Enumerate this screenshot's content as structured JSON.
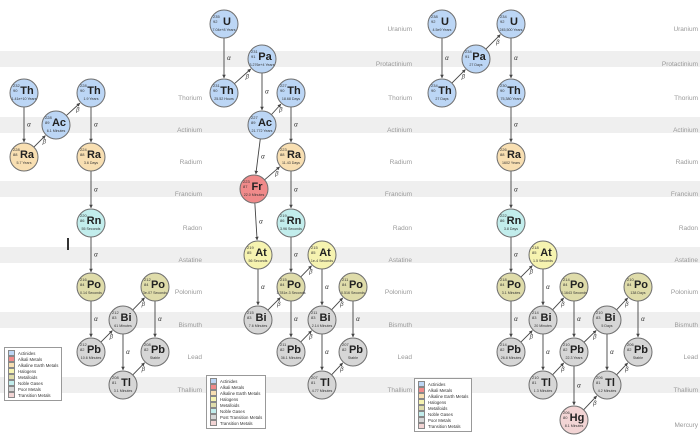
{
  "colors": {
    "actinide": "#bcd6f5",
    "alkali": "#f08a8a",
    "alkaline_earth": "#f8dfb2",
    "halogen": "#f6f3b0",
    "metalloid": "#dfdcaa",
    "noble_gas": "#c2edec",
    "post_transition": "#d6d6d6",
    "transition": "#f2d4d4",
    "border": "#6f6f6f",
    "line": "#444444"
  },
  "row_labels": [
    "Uranium",
    "Protactinium",
    "Thorium",
    "Actinium",
    "Radium",
    "Francium",
    "Radon",
    "Astatine",
    "Polonium",
    "Bismuth",
    "Lead",
    "Thallium",
    "Mercury"
  ],
  "legend_items": [
    {
      "label": "Actinides",
      "color": "#bcd6f5"
    },
    {
      "label": "Alkali Metals",
      "color": "#f08a8a"
    },
    {
      "label": "Alkaline Earth Metals",
      "color": "#f8dfb2"
    },
    {
      "label": "Halogens",
      "color": "#f6f3b0"
    },
    {
      "label": "Metalloids",
      "color": "#dfdcaa"
    },
    {
      "label": "Noble Gases",
      "color": "#c2edec"
    },
    {
      "label": "Poor Metals",
      "color": "#d6d6d6"
    },
    {
      "label": "Transition Metals",
      "color": "#f2d4d4"
    }
  ],
  "legend_items_2": [
    {
      "label": "Actinides",
      "color": "#bcd6f5"
    },
    {
      "label": "Alkali Metals",
      "color": "#f08a8a"
    },
    {
      "label": "Alkaline Earth Metals",
      "color": "#f8dfb2"
    },
    {
      "label": "Halogens",
      "color": "#f6f3b0"
    },
    {
      "label": "Metalloids",
      "color": "#dfdcaa"
    },
    {
      "label": "Noble Gases",
      "color": "#c2edec"
    },
    {
      "label": "Post Transition Metals",
      "color": "#d6d6d6"
    },
    {
      "label": "Transition Metals",
      "color": "#f2d4d4"
    }
  ],
  "chains": [
    {
      "nodes": [
        {
          "id": "th232",
          "sym": "Th",
          "mass": "232",
          "z": "90",
          "half": "1.41e+10 Years",
          "cat": "actinide"
        },
        {
          "id": "th228",
          "sym": "Th",
          "mass": "228",
          "z": "90",
          "half": "1.9 Years",
          "cat": "actinide"
        },
        {
          "id": "ac228",
          "sym": "Ac",
          "mass": "228",
          "z": "89",
          "half": "6.1 Minutes",
          "cat": "actinide"
        },
        {
          "id": "ra228",
          "sym": "Ra",
          "mass": "228",
          "z": "88",
          "half": "5.7 Years",
          "cat": "alkaline_earth"
        },
        {
          "id": "ra224",
          "sym": "Ra",
          "mass": "224",
          "z": "88",
          "half": "3.6 Days",
          "cat": "alkaline_earth"
        },
        {
          "id": "rn220",
          "sym": "Rn",
          "mass": "220",
          "z": "86",
          "half": "55 Seconds",
          "cat": "noble_gas"
        },
        {
          "id": "po216",
          "sym": "Po",
          "mass": "216",
          "z": "84",
          "half": "0.14 Seconds",
          "cat": "metalloid"
        },
        {
          "id": "po212",
          "sym": "Po",
          "mass": "212",
          "z": "84",
          "half": "3e-07 Seconds",
          "cat": "metalloid"
        },
        {
          "id": "bi212",
          "sym": "Bi",
          "mass": "212",
          "z": "83",
          "half": "61 Minutes",
          "cat": "post_transition"
        },
        {
          "id": "pb212",
          "sym": "Pb",
          "mass": "212",
          "z": "82",
          "half": "10.6 Minutes",
          "cat": "post_transition"
        },
        {
          "id": "pb208",
          "sym": "Pb",
          "mass": "208",
          "z": "82",
          "half": "Stable",
          "cat": "post_transition"
        },
        {
          "id": "tl208",
          "sym": "Tl",
          "mass": "208",
          "z": "81",
          "half": "3.1 Minutes",
          "cat": "post_transition"
        }
      ],
      "edges": [
        {
          "from": "th232",
          "to": "ra228",
          "mode": "α"
        },
        {
          "from": "ra228",
          "to": "ac228",
          "mode": "β"
        },
        {
          "from": "ac228",
          "to": "th228",
          "mode": "β"
        },
        {
          "from": "th228",
          "to": "ra224",
          "mode": "α"
        },
        {
          "from": "ra224",
          "to": "rn220",
          "mode": "α"
        },
        {
          "from": "rn220",
          "to": "po216",
          "mode": "α"
        },
        {
          "from": "po216",
          "to": "pb212",
          "mode": "α"
        },
        {
          "from": "pb212",
          "to": "bi212",
          "mode": "β"
        },
        {
          "from": "bi212",
          "to": "po212",
          "mode": "β"
        },
        {
          "from": "bi212",
          "to": "tl208",
          "mode": "α"
        },
        {
          "from": "po212",
          "to": "pb208",
          "mode": "α"
        },
        {
          "from": "tl208",
          "to": "pb208",
          "mode": "β"
        }
      ]
    },
    {
      "nodes": [
        {
          "id": "u235",
          "sym": "U",
          "mass": "235",
          "z": "92",
          "half": "7.04e+8 Years",
          "cat": "actinide"
        },
        {
          "id": "pa231",
          "sym": "Pa",
          "mass": "231",
          "z": "91",
          "half": "3.276e+4 Years",
          "cat": "actinide"
        },
        {
          "id": "th231",
          "sym": "Th",
          "mass": "231",
          "z": "90",
          "half": "25.52 Hours",
          "cat": "actinide"
        },
        {
          "id": "th227",
          "sym": "Th",
          "mass": "227",
          "z": "90",
          "half": "18.68 Days",
          "cat": "actinide"
        },
        {
          "id": "ac227",
          "sym": "Ac",
          "mass": "227",
          "z": "89",
          "half": "21.772 Years",
          "cat": "actinide"
        },
        {
          "id": "ra223",
          "sym": "Ra",
          "mass": "223",
          "z": "88",
          "half": "11.43 Days",
          "cat": "alkaline_earth"
        },
        {
          "id": "fr223",
          "sym": "Fr",
          "mass": "223",
          "z": "87",
          "half": "22.0 Minutes",
          "cat": "alkali"
        },
        {
          "id": "rn219",
          "sym": "Rn",
          "mass": "219",
          "z": "86",
          "half": "3.96 Seconds",
          "cat": "noble_gas"
        },
        {
          "id": "at219",
          "sym": "At",
          "mass": "219",
          "z": "85",
          "half": "56 Seconds",
          "cat": "halogen"
        },
        {
          "id": "at215",
          "sym": "At",
          "mass": "215",
          "z": "85",
          "half": "1e-4 Seconds",
          "cat": "halogen"
        },
        {
          "id": "po215",
          "sym": "Po",
          "mass": "215",
          "z": "84",
          "half": "1.781e-3 Seconds",
          "cat": "metalloid"
        },
        {
          "id": "po211",
          "sym": "Po",
          "mass": "211",
          "z": "84",
          "half": "0.516 Seconds",
          "cat": "metalloid"
        },
        {
          "id": "bi215",
          "sym": "Bi",
          "mass": "215",
          "z": "83",
          "half": "7.6 Minutes",
          "cat": "post_transition"
        },
        {
          "id": "bi211",
          "sym": "Bi",
          "mass": "211",
          "z": "83",
          "half": "2.14 Minutes",
          "cat": "post_transition"
        },
        {
          "id": "pb211",
          "sym": "Pb",
          "mass": "211",
          "z": "82",
          "half": "36.1 Minutes",
          "cat": "post_transition"
        },
        {
          "id": "pb207",
          "sym": "Pb",
          "mass": "207",
          "z": "82",
          "half": "Stable",
          "cat": "post_transition"
        },
        {
          "id": "tl207",
          "sym": "Tl",
          "mass": "207",
          "z": "81",
          "half": "4.77 Minutes",
          "cat": "post_transition"
        }
      ],
      "edges": [
        {
          "from": "u235",
          "to": "th231",
          "mode": "α"
        },
        {
          "from": "th231",
          "to": "pa231",
          "mode": "β"
        },
        {
          "from": "pa231",
          "to": "ac227",
          "mode": "α"
        },
        {
          "from": "ac227",
          "to": "th227",
          "mode": "β"
        },
        {
          "from": "ac227",
          "to": "fr223",
          "mode": "α"
        },
        {
          "from": "th227",
          "to": "ra223",
          "mode": "α"
        },
        {
          "from": "fr223",
          "to": "ra223",
          "mode": "β"
        },
        {
          "from": "fr223",
          "to": "at219",
          "mode": "α"
        },
        {
          "from": "ra223",
          "to": "rn219",
          "mode": "α"
        },
        {
          "from": "rn219",
          "to": "po215",
          "mode": "α"
        },
        {
          "from": "at219",
          "to": "bi215",
          "mode": "α"
        },
        {
          "from": "bi215",
          "to": "po215",
          "mode": "β"
        },
        {
          "from": "po215",
          "to": "at215",
          "mode": "β"
        },
        {
          "from": "po215",
          "to": "pb211",
          "mode": "α"
        },
        {
          "from": "at215",
          "to": "bi211",
          "mode": "α"
        },
        {
          "from": "pb211",
          "to": "bi211",
          "mode": "β"
        },
        {
          "from": "bi211",
          "to": "po211",
          "mode": "β"
        },
        {
          "from": "bi211",
          "to": "tl207",
          "mode": "α"
        },
        {
          "from": "po211",
          "to": "pb207",
          "mode": "α"
        },
        {
          "from": "tl207",
          "to": "pb207",
          "mode": "β"
        }
      ]
    },
    {
      "nodes": [
        {
          "id": "u238",
          "sym": "U",
          "mass": "238",
          "z": "92",
          "half": "4.5e9 Years",
          "cat": "actinide"
        },
        {
          "id": "pa234",
          "sym": "Pa",
          "mass": "234",
          "z": "91",
          "half": "27 Days",
          "cat": "actinide"
        },
        {
          "id": "u234",
          "sym": "U",
          "mass": "234",
          "z": "92",
          "half": "245,500 Years",
          "cat": "actinide"
        },
        {
          "id": "th234",
          "sym": "Th",
          "mass": "234",
          "z": "90",
          "half": "27 Days",
          "cat": "actinide"
        },
        {
          "id": "th230",
          "sym": "Th",
          "mass": "230",
          "z": "90",
          "half": "75,380 Years",
          "cat": "actinide"
        },
        {
          "id": "ra226",
          "sym": "Ra",
          "mass": "226",
          "z": "88",
          "half": "1602 Years",
          "cat": "alkaline_earth"
        },
        {
          "id": "rn222",
          "sym": "Rn",
          "mass": "222",
          "z": "86",
          "half": "3.8 Days",
          "cat": "noble_gas"
        },
        {
          "id": "at218",
          "sym": "At",
          "mass": "218",
          "z": "85",
          "half": "1.5 Seconds",
          "cat": "halogen"
        },
        {
          "id": "po218",
          "sym": "Po",
          "mass": "218",
          "z": "84",
          "half": "3.1 Minutes",
          "cat": "metalloid"
        },
        {
          "id": "po214",
          "sym": "Po",
          "mass": "214",
          "z": "84",
          "half": "0.1643 Seconds",
          "cat": "metalloid"
        },
        {
          "id": "po210",
          "sym": "Po",
          "mass": "210",
          "z": "84",
          "half": "138 Days",
          "cat": "metalloid"
        },
        {
          "id": "bi214",
          "sym": "Bi",
          "mass": "214",
          "z": "83",
          "half": "20 Minutes",
          "cat": "post_transition"
        },
        {
          "id": "bi210",
          "sym": "Bi",
          "mass": "210",
          "z": "83",
          "half": "5 Days",
          "cat": "post_transition"
        },
        {
          "id": "pb214",
          "sym": "Pb",
          "mass": "214",
          "z": "82",
          "half": "26.8 Minutes",
          "cat": "post_transition"
        },
        {
          "id": "pb210",
          "sym": "Pb",
          "mass": "210",
          "z": "82",
          "half": "22.3 Years",
          "cat": "post_transition"
        },
        {
          "id": "pb206",
          "sym": "Pb",
          "mass": "206",
          "z": "82",
          "half": "Stable",
          "cat": "post_transition"
        },
        {
          "id": "tl210",
          "sym": "Tl",
          "mass": "210",
          "z": "81",
          "half": "1.3 Minutes",
          "cat": "post_transition"
        },
        {
          "id": "tl206",
          "sym": "Tl",
          "mass": "206",
          "z": "81",
          "half": "4.2 Minutes",
          "cat": "post_transition"
        },
        {
          "id": "hg206",
          "sym": "Hg",
          "mass": "206",
          "z": "80",
          "half": "8.1 Minutes",
          "cat": "transition"
        }
      ],
      "edges": [
        {
          "from": "u238",
          "to": "th234",
          "mode": "α"
        },
        {
          "from": "th234",
          "to": "pa234",
          "mode": "β"
        },
        {
          "from": "pa234",
          "to": "u234",
          "mode": "β"
        },
        {
          "from": "u234",
          "to": "th230",
          "mode": "α"
        },
        {
          "from": "th230",
          "to": "ra226",
          "mode": "α"
        },
        {
          "from": "ra226",
          "to": "rn222",
          "mode": "α"
        },
        {
          "from": "rn222",
          "to": "po218",
          "mode": "α"
        },
        {
          "from": "po218",
          "to": "at218",
          "mode": "β"
        },
        {
          "from": "po218",
          "to": "pb214",
          "mode": "α"
        },
        {
          "from": "at218",
          "to": "bi214",
          "mode": "α"
        },
        {
          "from": "pb214",
          "to": "bi214",
          "mode": "β"
        },
        {
          "from": "bi214",
          "to": "po214",
          "mode": "β"
        },
        {
          "from": "bi214",
          "to": "tl210",
          "mode": "α"
        },
        {
          "from": "po214",
          "to": "pb210",
          "mode": "α"
        },
        {
          "from": "tl210",
          "to": "pb210",
          "mode": "β"
        },
        {
          "from": "pb210",
          "to": "bi210",
          "mode": "β"
        },
        {
          "from": "pb210",
          "to": "hg206",
          "mode": "α"
        },
        {
          "from": "bi210",
          "to": "po210",
          "mode": "β"
        },
        {
          "from": "bi210",
          "to": "tl206",
          "mode": "α"
        },
        {
          "from": "po210",
          "to": "pb206",
          "mode": "α"
        },
        {
          "from": "tl206",
          "to": "pb206",
          "mode": "β"
        },
        {
          "from": "hg206",
          "to": "tl206",
          "mode": "β"
        }
      ]
    }
  ]
}
